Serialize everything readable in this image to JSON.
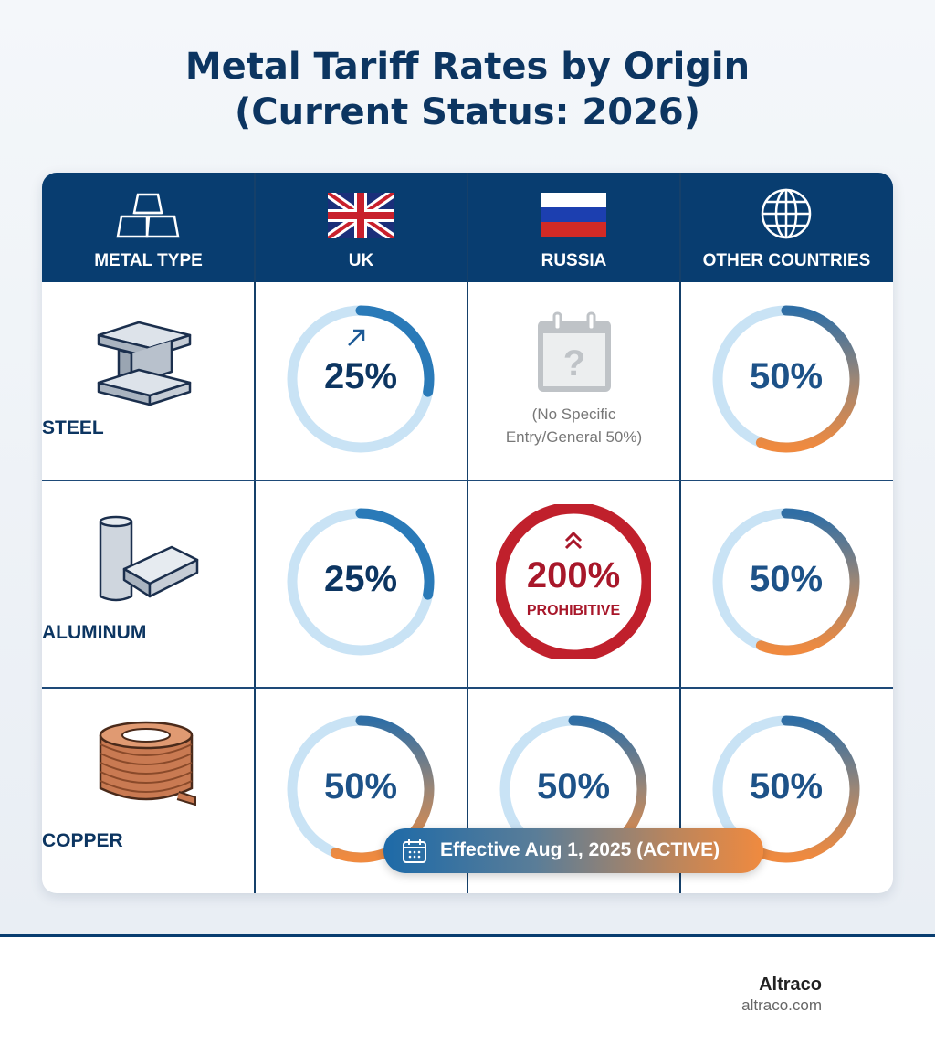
{
  "title_line1": "Metal Tariff Rates by Origin",
  "title_line2": "(Current Status: 2026)",
  "colors": {
    "navy": "#083d70",
    "text": "#0c3561",
    "track": "#c9e3f5",
    "blue_arc": "#2a7ab8",
    "orange_arc": "#f08a3f",
    "red": "#c0202c"
  },
  "header": [
    {
      "label": "METAL TYPE",
      "icon": "gold-bars-icon"
    },
    {
      "label": "UK",
      "icon": "uk-flag-icon"
    },
    {
      "label": "RUSSIA",
      "icon": "russia-flag-icon"
    },
    {
      "label": "OTHER COUNTRIES",
      "icon": "globe-icon"
    }
  ],
  "rows": [
    {
      "metal": "STEEL",
      "icon": "steel-beam-icon",
      "cells": [
        {
          "label": "25%",
          "value": 25,
          "style": "blue",
          "trend": "arrow-up-right-icon"
        },
        {
          "note1": "(No Specific",
          "note2": "Entry/General 50%)",
          "icon": "calendar-question-icon"
        },
        {
          "label": "50%",
          "value": 50,
          "style": "gradient"
        }
      ]
    },
    {
      "metal": "ALUMINUM",
      "icon": "aluminum-can-ingot-icon",
      "cells": [
        {
          "label": "25%",
          "value": 25,
          "style": "blue"
        },
        {
          "label": "200%",
          "value": 200,
          "style": "red",
          "sub": "PROHIBITIVE",
          "trend": "double-chevron-up-icon"
        },
        {
          "label": "50%",
          "value": 50,
          "style": "gradient"
        }
      ]
    },
    {
      "metal": "COPPER",
      "icon": "copper-coil-icon",
      "cells": [
        {
          "label": "50%",
          "value": 50,
          "style": "gradient"
        },
        {
          "label": "50%",
          "value": 50,
          "style": "gradient"
        },
        {
          "label": "50%",
          "value": 50,
          "style": "gradient"
        }
      ]
    }
  ],
  "badge": {
    "label": "Effective Aug 1, 2025 (ACTIVE)",
    "icon": "calendar-icon"
  },
  "footer": {
    "brand": "Altraco",
    "url": "altraco.com"
  },
  "chart_data": {
    "type": "table",
    "title": "Metal Tariff Rates by Origin (Current Status: 2026)",
    "columns": [
      "METAL TYPE",
      "UK",
      "RUSSIA",
      "OTHER COUNTRIES"
    ],
    "rows": [
      [
        "STEEL",
        "25%",
        "(No Specific Entry/General 50%)",
        "50%"
      ],
      [
        "ALUMINUM",
        "25%",
        "200% PROHIBITIVE",
        "50%"
      ],
      [
        "COPPER",
        "50%",
        "50%",
        "50%"
      ]
    ]
  }
}
